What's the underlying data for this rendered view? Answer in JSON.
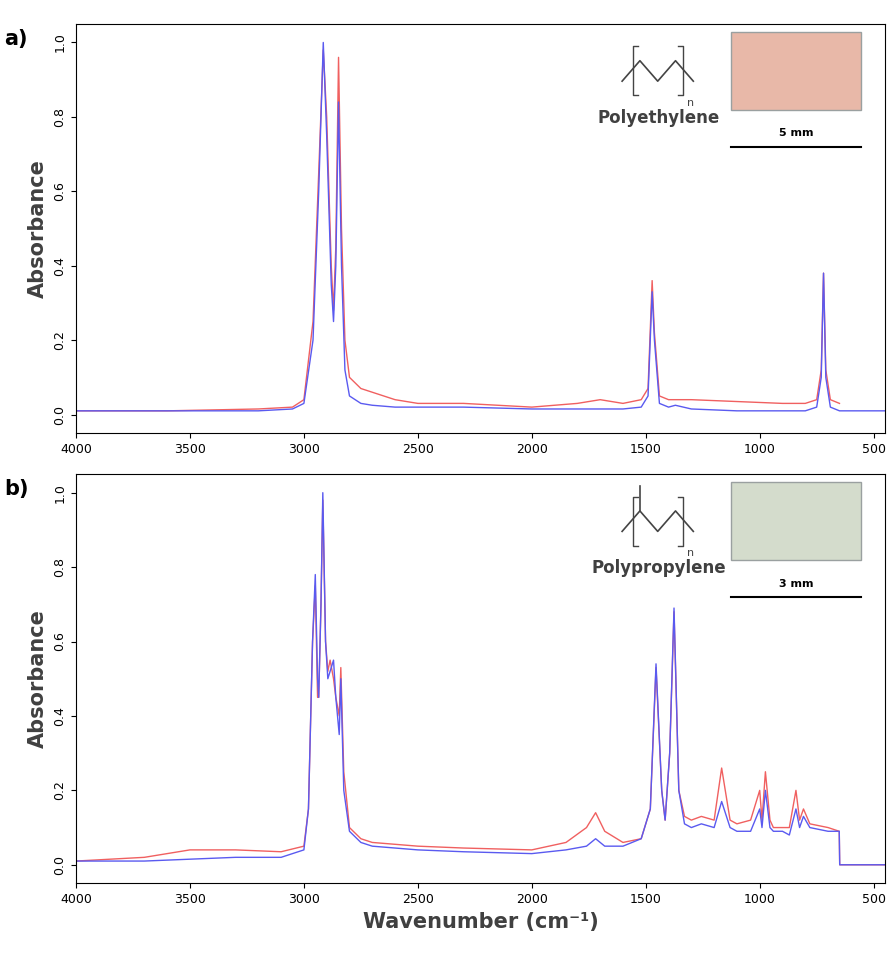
{
  "chart_data": [
    {
      "type": "line",
      "annotations": {
        "panel_label": "a)",
        "polymer": "Polyethylene",
        "scale_bar": "5 mm",
        "repeat_unit": "n"
      },
      "y_label": "Absorbance",
      "x": [
        4000,
        3600,
        3200,
        3050,
        3000,
        2960,
        2935,
        2915,
        2900,
        2880,
        2870,
        2860,
        2848,
        2835,
        2820,
        2800,
        2750,
        2700,
        2600,
        2500,
        2300,
        2000,
        1800,
        1700,
        1600,
        1520,
        1490,
        1472,
        1462,
        1440,
        1400,
        1370,
        1300,
        1100,
        900,
        800,
        750,
        730,
        720,
        710,
        690,
        650,
        600,
        500,
        450
      ],
      "series": [
        {
          "color": "#f06060",
          "values": [
            0.01,
            0.01,
            0.015,
            0.02,
            0.04,
            0.25,
            0.65,
            0.98,
            0.8,
            0.4,
            0.28,
            0.45,
            0.96,
            0.5,
            0.2,
            0.1,
            0.07,
            0.06,
            0.04,
            0.03,
            0.03,
            0.02,
            0.03,
            0.04,
            0.03,
            0.04,
            0.07,
            0.36,
            0.22,
            0.05,
            0.04,
            0.04,
            0.04,
            0.035,
            0.03,
            0.03,
            0.04,
            0.12,
            0.38,
            0.12,
            0.04,
            0.03,
            null,
            null,
            null
          ]
        },
        {
          "color": "#5a5af0",
          "values": [
            0.01,
            0.01,
            0.01,
            0.015,
            0.03,
            0.2,
            0.6,
            1.0,
            0.75,
            0.35,
            0.25,
            0.4,
            0.84,
            0.4,
            0.12,
            0.05,
            0.03,
            0.025,
            0.02,
            0.02,
            0.02,
            0.015,
            0.015,
            0.015,
            0.015,
            0.02,
            0.05,
            0.33,
            0.2,
            0.03,
            0.02,
            0.025,
            0.015,
            0.01,
            0.01,
            0.01,
            0.02,
            0.1,
            0.38,
            0.1,
            0.02,
            0.01,
            0.01,
            0.01,
            0.01
          ]
        }
      ],
      "xlim": [
        4000,
        450
      ],
      "xticks": [
        4000,
        3500,
        3000,
        2500,
        2000,
        1500,
        1000,
        500
      ],
      "ylim": [
        -0.05,
        1.05
      ],
      "yticks": [
        {
          "value": 0,
          "label": "0.0"
        },
        {
          "value": 0.2,
          "label": "0.2"
        },
        {
          "value": 0.4,
          "label": "0.4"
        },
        {
          "value": 0.6,
          "label": "0.6"
        },
        {
          "value": 0.8,
          "label": "0.8"
        },
        {
          "value": 1.0,
          "label": "1.0"
        }
      ],
      "grid": false
    },
    {
      "type": "line",
      "annotations": {
        "panel_label": "b)",
        "polymer": "Polypropylene",
        "scale_bar": "3 mm",
        "repeat_unit": "n"
      },
      "x_label": "Wavenumber (cm⁻¹)",
      "y_label": "Absorbance",
      "x": [
        4000,
        3700,
        3500,
        3300,
        3100,
        3000,
        2980,
        2962,
        2950,
        2940,
        2935,
        2925,
        2917,
        2905,
        2895,
        2885,
        2870,
        2860,
        2845,
        2838,
        2825,
        2800,
        2750,
        2700,
        2500,
        2300,
        2000,
        1850,
        1760,
        1720,
        1680,
        1600,
        1520,
        1480,
        1455,
        1430,
        1415,
        1395,
        1376,
        1355,
        1330,
        1300,
        1256,
        1200,
        1167,
        1130,
        1100,
        1040,
        1000,
        990,
        975,
        955,
        940,
        900,
        870,
        841,
        825,
        808,
        780,
        700,
        651,
        649,
        600,
        500,
        450
      ],
      "series": [
        {
          "color": "#f06060",
          "values": [
            0.01,
            0.02,
            0.04,
            0.04,
            0.035,
            0.05,
            0.15,
            0.6,
            0.75,
            0.45,
            0.45,
            0.7,
            0.98,
            0.6,
            0.52,
            0.55,
            0.5,
            0.45,
            0.4,
            0.53,
            0.25,
            0.1,
            0.07,
            0.06,
            0.05,
            0.045,
            0.04,
            0.06,
            0.1,
            0.14,
            0.09,
            0.06,
            0.07,
            0.15,
            0.53,
            0.2,
            0.12,
            0.3,
            0.68,
            0.2,
            0.13,
            0.12,
            0.13,
            0.12,
            0.26,
            0.12,
            0.11,
            0.12,
            0.2,
            0.12,
            0.25,
            0.12,
            0.1,
            0.1,
            0.1,
            0.2,
            0.12,
            0.15,
            0.11,
            0.1,
            0.09,
            0.0,
            0.0,
            0.0,
            0.0
          ]
        },
        {
          "color": "#5a5af0",
          "values": [
            0.01,
            0.01,
            0.015,
            0.02,
            0.02,
            0.04,
            0.15,
            0.6,
            0.78,
            0.5,
            0.45,
            0.7,
            1.0,
            0.6,
            0.5,
            0.52,
            0.55,
            0.45,
            0.35,
            0.5,
            0.2,
            0.09,
            0.06,
            0.05,
            0.04,
            0.035,
            0.03,
            0.04,
            0.05,
            0.07,
            0.05,
            0.05,
            0.07,
            0.15,
            0.54,
            0.2,
            0.12,
            0.3,
            0.69,
            0.2,
            0.11,
            0.1,
            0.11,
            0.1,
            0.17,
            0.1,
            0.09,
            0.09,
            0.15,
            0.1,
            0.2,
            0.1,
            0.09,
            0.09,
            0.08,
            0.15,
            0.1,
            0.13,
            0.1,
            0.09,
            0.09,
            0.0,
            0.0,
            0.0,
            0.0
          ]
        }
      ],
      "xlim": [
        4000,
        450
      ],
      "xticks": [
        4000,
        3500,
        3000,
        2500,
        2000,
        1500,
        1000,
        500
      ],
      "ylim": [
        -0.05,
        1.05
      ],
      "yticks": [
        {
          "value": 0,
          "label": "0.0"
        },
        {
          "value": 0.2,
          "label": "0.2"
        },
        {
          "value": 0.4,
          "label": "0.4"
        },
        {
          "value": 0.6,
          "label": "0.6"
        },
        {
          "value": 0.8,
          "label": "0.8"
        },
        {
          "value": 1.0,
          "label": "1.0"
        }
      ],
      "grid": false
    }
  ]
}
